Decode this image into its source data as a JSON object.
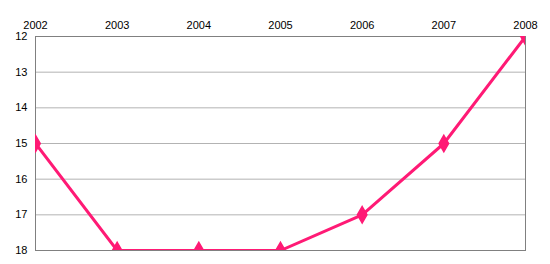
{
  "chart_data": {
    "type": "line",
    "x": [
      2002,
      2003,
      2004,
      2005,
      2006,
      2007,
      2008
    ],
    "values": [
      15,
      18,
      18,
      18,
      17,
      15,
      12
    ],
    "color": "#ff1a75",
    "marker": "diamond",
    "xlim": [
      2002,
      2008
    ],
    "xticks": [
      2002,
      2003,
      2004,
      2005,
      2006,
      2007,
      2008
    ],
    "ylim": [
      18,
      12
    ],
    "yticks": [
      12,
      13,
      14,
      15,
      16,
      17,
      18
    ],
    "grid": true
  }
}
